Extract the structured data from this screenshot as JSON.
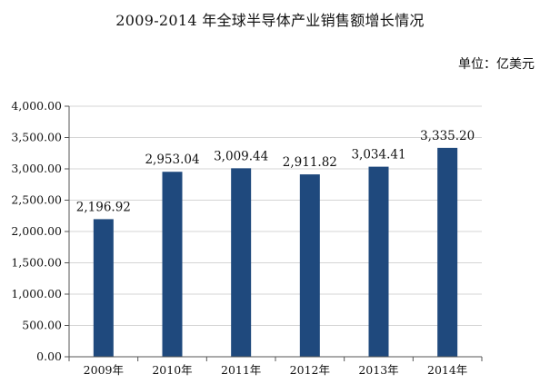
{
  "chart_data": {
    "type": "bar",
    "title": "2009-2014 年全球半导体产业销售额增长情况",
    "unit_label": "单位：亿美元",
    "categories": [
      "2009年",
      "2010年",
      "2011年",
      "2012年",
      "2013年",
      "2014年"
    ],
    "values": [
      2196.92,
      2953.04,
      3009.44,
      2911.82,
      3034.41,
      3335.2
    ],
    "value_labels": [
      "2,196.92",
      "2,953.04",
      "3,009.44",
      "2,911.82",
      "3,034.41",
      "3,335.20"
    ],
    "y_ticks": [
      "0.00",
      "500.00",
      "1,000.00",
      "1,500.00",
      "2,000.00",
      "2,500.00",
      "3,000.00",
      "3,500.00",
      "4,000.00"
    ],
    "ylim": [
      0,
      4000
    ],
    "grid": true,
    "bar_color": "#1f497d"
  }
}
